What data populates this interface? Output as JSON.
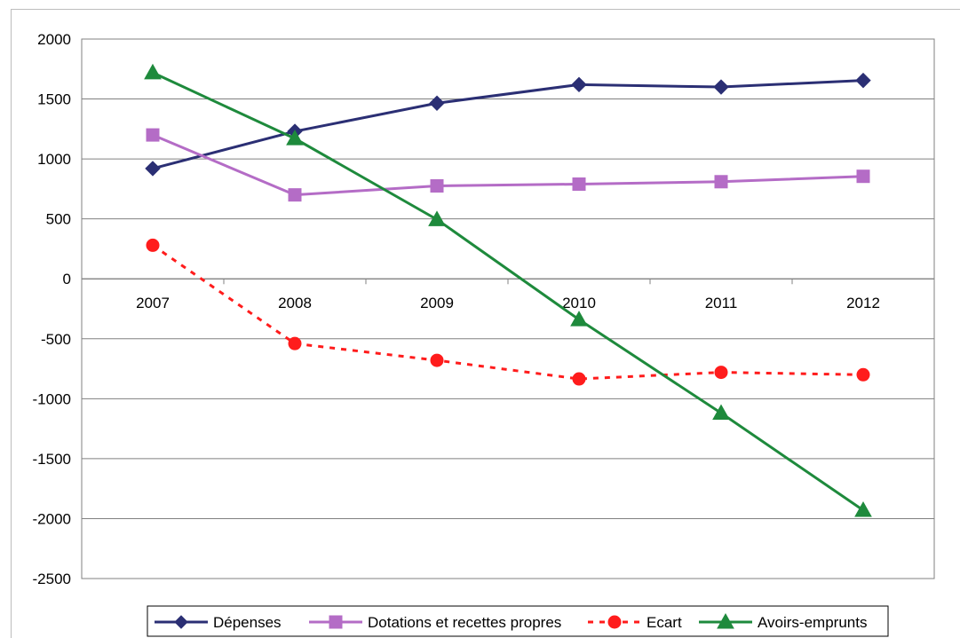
{
  "chart_data": {
    "type": "line",
    "title": "",
    "xlabel": "",
    "ylabel": "",
    "categories": [
      "2007",
      "2008",
      "2009",
      "2010",
      "2011",
      "2012"
    ],
    "ylim": [
      -2500,
      2000
    ],
    "ytick_step": 500,
    "yticks": [
      "2000",
      "1500",
      "1000",
      "500",
      "0",
      "-500",
      "-1000",
      "-1500",
      "-2000",
      "-2500"
    ],
    "grid": "horizontal",
    "legend_position": "bottom",
    "series": [
      {
        "name": "Dépenses",
        "values": [
          920,
          1230,
          1465,
          1620,
          1600,
          1655
        ],
        "color": "#2b2f74",
        "marker": "diamond",
        "dash": false
      },
      {
        "name": "Dotations et recettes propres",
        "values": [
          1200,
          700,
          775,
          790,
          810,
          855
        ],
        "color": "#b46cc6",
        "marker": "square",
        "dash": false
      },
      {
        "name": "Ecart",
        "values": [
          280,
          -540,
          -680,
          -835,
          -780,
          -800
        ],
        "color": "#ff1c1c",
        "marker": "circle",
        "dash": true
      },
      {
        "name": "Avoirs-emprunts",
        "values": [
          1720,
          1170,
          495,
          -340,
          -1120,
          -1930
        ],
        "color": "#1e8a3c",
        "marker": "triangle",
        "dash": false
      }
    ]
  }
}
